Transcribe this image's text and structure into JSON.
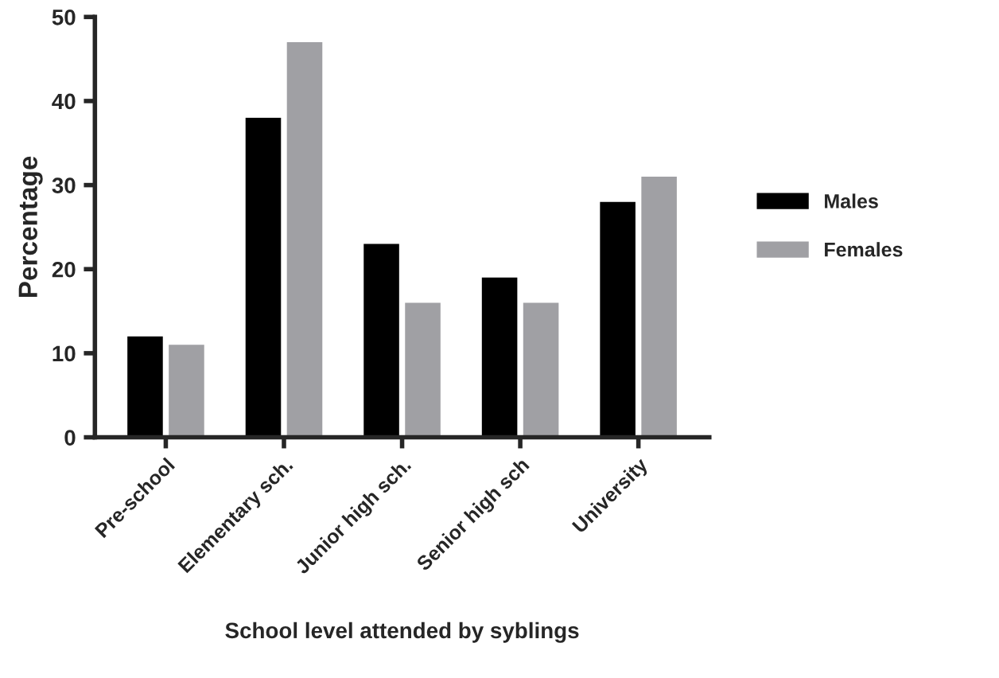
{
  "chart_data": {
    "type": "bar",
    "xlabel": "School level attended by syblings",
    "ylabel": "Percentage",
    "categories": [
      "Pre-school",
      "Elementary sch.",
      "Junior high sch.",
      "Senior high sch",
      "University"
    ],
    "series": [
      {
        "name": "Males",
        "color": "#000000",
        "values": [
          12,
          38,
          23,
          19,
          28
        ]
      },
      {
        "name": "Females",
        "color": "#a0a0a4",
        "values": [
          11,
          47,
          16,
          16,
          31
        ]
      }
    ],
    "ylim": [
      0,
      50
    ],
    "yticks": [
      0,
      10,
      20,
      30,
      40,
      50
    ],
    "grid": false,
    "legend": "right"
  }
}
